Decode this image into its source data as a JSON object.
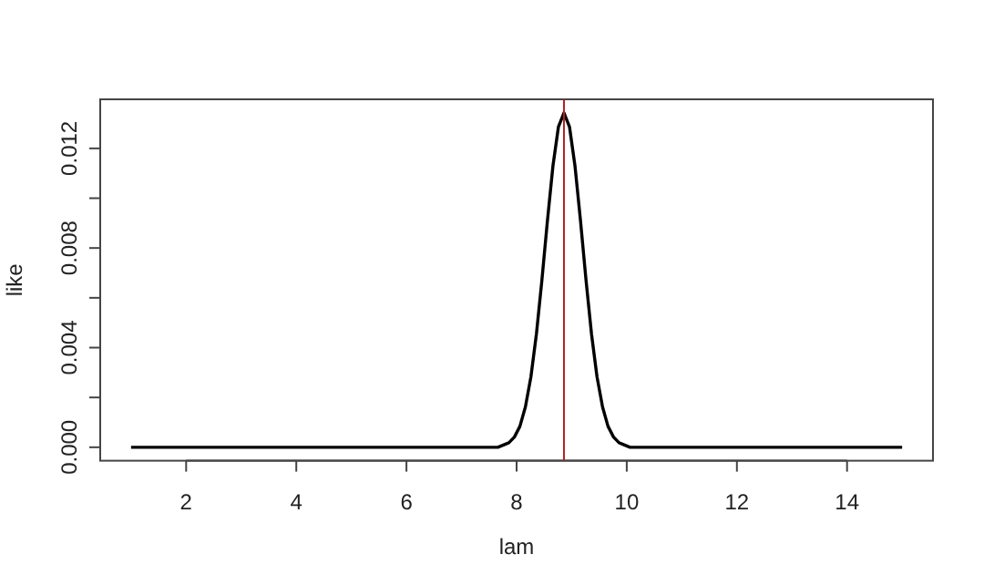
{
  "chart_data": {
    "type": "line",
    "xlabel": "lam",
    "ylabel": "like",
    "xlim": [
      0.44,
      15.56
    ],
    "ylim": [
      -0.00054,
      0.01397
    ],
    "xticks": [
      2,
      4,
      6,
      8,
      10,
      12,
      14
    ],
    "yticks": [
      {
        "value": 0,
        "label": "0.000"
      },
      {
        "value": 0.002,
        "label": null
      },
      {
        "value": 0.004,
        "label": "0.004"
      },
      {
        "value": 0.006,
        "label": null
      },
      {
        "value": 0.008,
        "label": "0.008"
      },
      {
        "value": 0.01,
        "label": null
      },
      {
        "value": 0.012,
        "label": "0.012"
      }
    ],
    "grid": false,
    "marker": "none",
    "line_style": "solid",
    "series": [
      {
        "color": "#000000",
        "x": [
          1,
          2,
          3,
          4,
          5,
          6,
          7,
          7.5,
          7.66,
          7.86,
          7.96,
          8.06,
          8.16,
          8.26,
          8.36,
          8.46,
          8.56,
          8.66,
          8.76,
          8.86,
          8.96,
          9.06,
          9.16,
          9.26,
          9.36,
          9.46,
          9.56,
          9.66,
          9.76,
          9.86,
          10.06,
          10.5,
          11,
          12,
          13,
          14,
          15
        ],
        "values": [
          0,
          0,
          0,
          0,
          0,
          0,
          0,
          0,
          0,
          0.00018,
          0.00041,
          0.00084,
          0.00162,
          0.00283,
          0.00455,
          0.00672,
          0.0091,
          0.0113,
          0.01287,
          0.01343,
          0.01287,
          0.0113,
          0.0091,
          0.00672,
          0.00455,
          0.00283,
          0.00162,
          0.00084,
          0.00041,
          0.00018,
          0,
          0,
          0,
          0,
          0,
          0,
          0
        ]
      }
    ],
    "ref_lines": [
      {
        "axis": "x",
        "value": 8.86,
        "color": "#b22222"
      }
    ]
  }
}
